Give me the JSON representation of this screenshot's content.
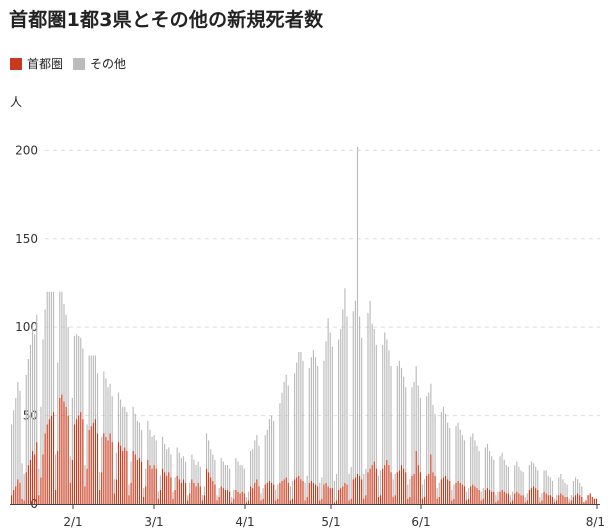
{
  "title": "首都圏1都3県とその他の新規死者数",
  "legend": [
    {
      "name": "首都圏",
      "color": "#c8381a"
    },
    {
      "name": "その他",
      "color": "#bbbbbb"
    }
  ],
  "chart_data": {
    "type": "bar",
    "stacked": true,
    "title": "首都圏1都3県とその他の新規死者数",
    "ylabel": "人",
    "ylim": [
      0,
      220
    ],
    "y_ticks": [
      0,
      50,
      100,
      150,
      200
    ],
    "x_ticks": [
      "2/1",
      "3/1",
      "4/1",
      "5/1",
      "6/1",
      "8/1"
    ],
    "grid": true,
    "legend_position": "top-left",
    "series": [
      {
        "name": "首都圏",
        "color": "#c8381a",
        "values": [
          5,
          8,
          10,
          14,
          12,
          3,
          2,
          18,
          22,
          25,
          30,
          28,
          35,
          5,
          15,
          28,
          40,
          45,
          48,
          50,
          52,
          8,
          30,
          60,
          62,
          58,
          55,
          50,
          12,
          25,
          45,
          48,
          50,
          52,
          48,
          10,
          20,
          42,
          44,
          46,
          48,
          40,
          8,
          18,
          40,
          38,
          36,
          40,
          35,
          6,
          14,
          35,
          33,
          30,
          32,
          30,
          5,
          12,
          30,
          28,
          25,
          26,
          24,
          4,
          10,
          25,
          22,
          20,
          22,
          20,
          3,
          8,
          20,
          18,
          16,
          18,
          15,
          3,
          8,
          16,
          14,
          12,
          14,
          12,
          2,
          6,
          14,
          12,
          10,
          12,
          10,
          2,
          5,
          20,
          18,
          15,
          13,
          11,
          2,
          4,
          10,
          9,
          8,
          8,
          7,
          1,
          3,
          8,
          7,
          6,
          7,
          6,
          1,
          2,
          10,
          9,
          12,
          14,
          10,
          2,
          3,
          11,
          12,
          13,
          12,
          11,
          2,
          3,
          12,
          13,
          14,
          15,
          12,
          2,
          3,
          14,
          15,
          16,
          14,
          13,
          2,
          4,
          12,
          13,
          12,
          11,
          10,
          2,
          3,
          11,
          12,
          10,
          9,
          9,
          1,
          2,
          8,
          9,
          10,
          12,
          11,
          2,
          3,
          14,
          15,
          17,
          16,
          14,
          3,
          5,
          18,
          20,
          22,
          24,
          20,
          4,
          5,
          20,
          22,
          25,
          22,
          18,
          4,
          5,
          18,
          19,
          22,
          20,
          18,
          3,
          4,
          16,
          17,
          30,
          22,
          18,
          3,
          4,
          16,
          17,
          28,
          18,
          16,
          3,
          4,
          14,
          15,
          16,
          14,
          13,
          2,
          3,
          12,
          13,
          12,
          11,
          10,
          2,
          3,
          10,
          11,
          10,
          9,
          8,
          2,
          3,
          8,
          9,
          8,
          7,
          7,
          1,
          2,
          7,
          8,
          7,
          6,
          6,
          1,
          2,
          6,
          7,
          6,
          5,
          5,
          1,
          2,
          8,
          9,
          10,
          9,
          8,
          1,
          2,
          7,
          6,
          5,
          5,
          4,
          1,
          2,
          5,
          6,
          5,
          4,
          4,
          1,
          2,
          4,
          5,
          6,
          5,
          4,
          1,
          2,
          5,
          6,
          4,
          3,
          3
        ]
      },
      {
        "name": "その他",
        "color": "#bbbbbb",
        "values": [
          40,
          45,
          50,
          55,
          52,
          20,
          15,
          55,
          60,
          65,
          70,
          68,
          72,
          15,
          40,
          65,
          70,
          75,
          72,
          70,
          68,
          20,
          50,
          60,
          58,
          55,
          52,
          50,
          15,
          35,
          50,
          48,
          45,
          42,
          40,
          12,
          25,
          42,
          40,
          38,
          36,
          34,
          10,
          20,
          35,
          33,
          30,
          28,
          26,
          8,
          15,
          28,
          26,
          25,
          23,
          22,
          6,
          12,
          25,
          23,
          22,
          20,
          18,
          5,
          10,
          22,
          20,
          18,
          17,
          16,
          4,
          8,
          18,
          16,
          15,
          14,
          13,
          4,
          7,
          16,
          15,
          14,
          13,
          12,
          3,
          6,
          14,
          13,
          12,
          12,
          11,
          3,
          5,
          20,
          18,
          16,
          15,
          14,
          3,
          5,
          16,
          15,
          14,
          14,
          13,
          3,
          5,
          18,
          17,
          16,
          15,
          14,
          3,
          5,
          20,
          22,
          24,
          25,
          23,
          4,
          6,
          28,
          30,
          35,
          38,
          36,
          6,
          8,
          45,
          50,
          55,
          58,
          55,
          8,
          10,
          60,
          65,
          70,
          72,
          68,
          10,
          12,
          65,
          70,
          75,
          72,
          68,
          10,
          12,
          70,
          80,
          95,
          88,
          80,
          12,
          15,
          85,
          90,
          100,
          110,
          95,
          15,
          18,
          95,
          100,
          185,
          90,
          80,
          14,
          15,
          90,
          95,
          80,
          75,
          70,
          12,
          14,
          70,
          75,
          68,
          65,
          60,
          10,
          12,
          60,
          62,
          55,
          52,
          48,
          8,
          10,
          50,
          52,
          48,
          45,
          42,
          8,
          10,
          45,
          46,
          40,
          38,
          35,
          6,
          8,
          38,
          40,
          35,
          32,
          30,
          6,
          8,
          32,
          33,
          30,
          28,
          26,
          5,
          6,
          28,
          29,
          26,
          24,
          22,
          5,
          6,
          24,
          25,
          22,
          20,
          18,
          4,
          5,
          20,
          21,
          18,
          16,
          15,
          4,
          5,
          16,
          17,
          15,
          14,
          13,
          3,
          4,
          14,
          15,
          13,
          12,
          11,
          3,
          4,
          12,
          13,
          11,
          10,
          9,
          2,
          3,
          10,
          11,
          9,
          8,
          7,
          2,
          3,
          9,
          10,
          8,
          7,
          6
        ]
      }
    ]
  }
}
